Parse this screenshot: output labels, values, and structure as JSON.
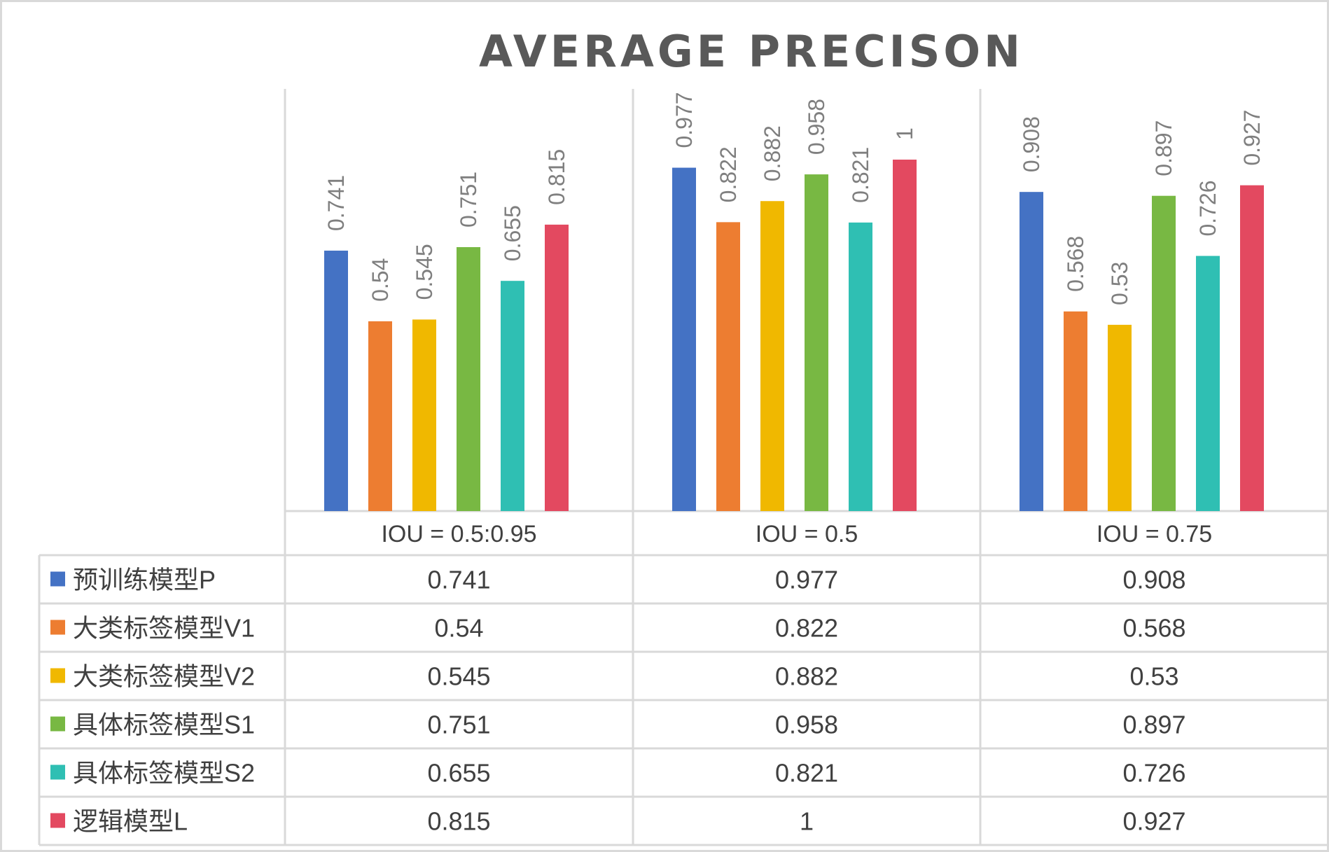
{
  "chart_data": {
    "type": "bar",
    "title": "AVERAGE PRECISON",
    "categories": [
      "IOU = 0.5:0.95",
      "IOU = 0.5",
      "IOU = 0.75"
    ],
    "series": [
      {
        "name": "预训练模型P",
        "color": "#4472c4",
        "values": [
          0.741,
          0.977,
          0.908
        ]
      },
      {
        "name": "大类标签模型V1",
        "color": "#ed7d31",
        "values": [
          0.54,
          0.822,
          0.568
        ]
      },
      {
        "name": "大类标签模型V2",
        "color": "#f0b800",
        "values": [
          0.545,
          0.882,
          0.53
        ]
      },
      {
        "name": "具体标签模型S1",
        "color": "#78b843",
        "values": [
          0.751,
          0.958,
          0.897
        ]
      },
      {
        "name": "具体标签模型S2",
        "color": "#2fbfb3",
        "values": [
          0.655,
          0.821,
          0.726
        ]
      },
      {
        "name": "逻辑模型L",
        "color": "#e34960",
        "values": [
          0.815,
          1,
          0.927
        ]
      }
    ],
    "value_labels": [
      [
        "0.741",
        "0.977",
        "0.908"
      ],
      [
        "0.54",
        "0.822",
        "0.568"
      ],
      [
        "0.545",
        "0.882",
        "0.53"
      ],
      [
        "0.751",
        "0.958",
        "0.897"
      ],
      [
        "0.655",
        "0.821",
        "0.726"
      ],
      [
        "0.815",
        "1",
        "0.927"
      ]
    ],
    "ylim": [
      0,
      1
    ],
    "grid": false,
    "legend": "data-table"
  }
}
